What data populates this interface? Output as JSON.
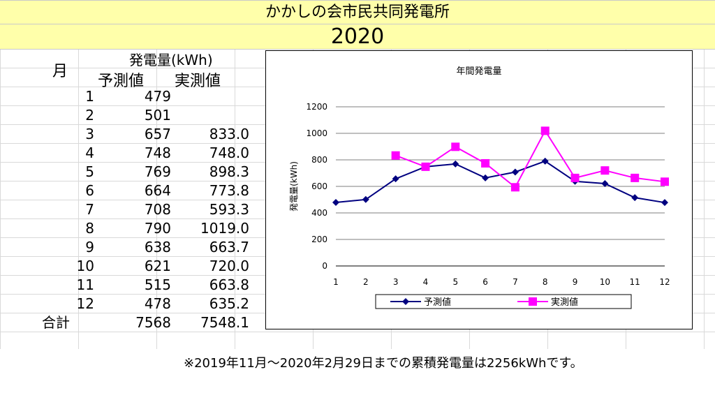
{
  "header": {
    "title": "かかしの会市民共同発電所",
    "year": "2020"
  },
  "table": {
    "month_header": "月",
    "group_header": "発電量(kWh)",
    "predicted_header": "予測値",
    "actual_header": "実測値",
    "rows": [
      {
        "month": "1",
        "pred": "479",
        "act": ""
      },
      {
        "month": "2",
        "pred": "501",
        "act": ""
      },
      {
        "month": "3",
        "pred": "657",
        "act": "833.0"
      },
      {
        "month": "4",
        "pred": "748",
        "act": "748.0"
      },
      {
        "month": "5",
        "pred": "769",
        "act": "898.3"
      },
      {
        "month": "6",
        "pred": "664",
        "act": "773.8"
      },
      {
        "month": "7",
        "pred": "708",
        "act": "593.3"
      },
      {
        "month": "8",
        "pred": "790",
        "act": "1019.0"
      },
      {
        "month": "9",
        "pred": "638",
        "act": "663.7"
      },
      {
        "month": "10",
        "pred": "621",
        "act": "720.0"
      },
      {
        "month": "11",
        "pred": "515",
        "act": "663.8"
      },
      {
        "month": "12",
        "pred": "478",
        "act": "635.2"
      }
    ],
    "total": {
      "label": "合計",
      "pred": "7568",
      "act": "7548.1"
    }
  },
  "chart_data": {
    "type": "line",
    "title": "年間発電量",
    "ylabel": "発電量(kWh)",
    "xlabel": "",
    "categories": [
      "1",
      "2",
      "3",
      "4",
      "5",
      "6",
      "7",
      "8",
      "9",
      "10",
      "11",
      "12"
    ],
    "ylim": [
      0,
      1200
    ],
    "yticks": [
      0,
      200,
      400,
      600,
      800,
      1000,
      1200
    ],
    "grid": true,
    "legend": "bottom",
    "series": [
      {
        "name": "予測値",
        "color": "#000080",
        "marker": "diamond",
        "values": [
          479,
          501,
          657,
          748,
          769,
          664,
          708,
          790,
          638,
          621,
          515,
          478
        ]
      },
      {
        "name": "実測値",
        "color": "#ff00ff",
        "marker": "square",
        "values": [
          null,
          null,
          833.0,
          748.0,
          898.3,
          773.8,
          593.3,
          1019.0,
          663.7,
          720.0,
          663.8,
          635.2
        ]
      }
    ]
  },
  "footnote": "※2019年11月～2020年2月29日までの累積発電量は2256kWhです。"
}
